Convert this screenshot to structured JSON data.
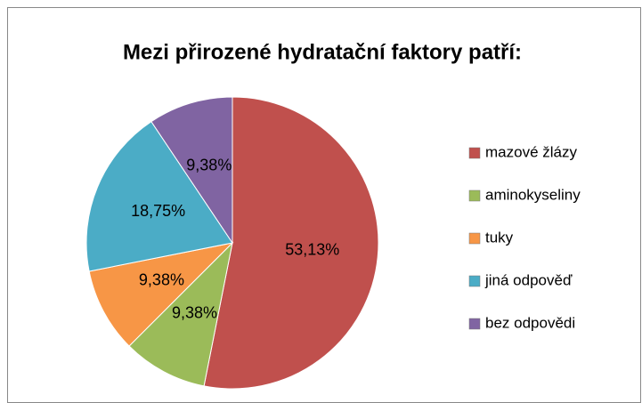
{
  "chart_data": {
    "type": "pie",
    "title": "Mezi přirozené hydratační faktory patří:",
    "categories": [
      "mazové žlázy",
      "aminokyseliny",
      "tuky",
      "jiná odpověď",
      "bez odpovědi"
    ],
    "values": [
      53.13,
      9.38,
      9.38,
      18.75,
      9.38
    ],
    "value_labels": [
      "53,13%",
      "9,38%",
      "9,38%",
      "18,75%",
      "9,38%"
    ],
    "colors": [
      "#c0504d",
      "#9bbb59",
      "#f79646",
      "#4bacc6",
      "#8064a2"
    ],
    "legend": "right"
  }
}
